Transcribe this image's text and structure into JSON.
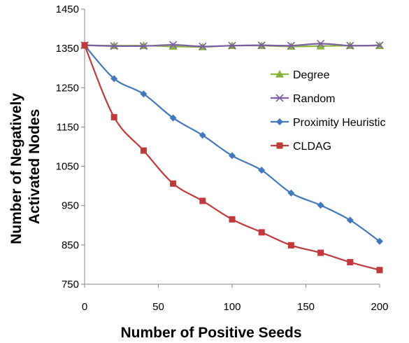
{
  "chart_data": {
    "type": "line",
    "title": "",
    "xlabel": "Number of Positive Seeds",
    "ylabel": [
      "Number of Negatively",
      "Activated Nodes"
    ],
    "xlim": [
      0,
      200
    ],
    "ylim": [
      750,
      1450
    ],
    "xticks": [
      0,
      50,
      100,
      150,
      200
    ],
    "yticks": [
      750,
      850,
      950,
      1050,
      1150,
      1250,
      1350,
      1450
    ],
    "grid": false,
    "legend": "right",
    "x": [
      0,
      20,
      40,
      60,
      80,
      100,
      120,
      140,
      160,
      180,
      200
    ],
    "series": [
      {
        "name": "Degree",
        "marker": "triangle",
        "color": "#8DB33F",
        "values": [
          1358,
          1357,
          1357,
          1355,
          1354,
          1357,
          1357,
          1355,
          1356,
          1357,
          1357
        ]
      },
      {
        "name": "Random",
        "marker": "x",
        "color": "#7B5FA5",
        "values": [
          1358,
          1356,
          1356,
          1359,
          1355,
          1357,
          1358,
          1357,
          1362,
          1357,
          1358
        ]
      },
      {
        "name": "Proximity Heuristic",
        "marker": "diamond",
        "color": "#4477BB",
        "values": [
          1358,
          1273,
          1234,
          1173,
          1129,
          1077,
          1040,
          982,
          951,
          913,
          859
        ]
      },
      {
        "name": "CLDAG",
        "marker": "square",
        "color": "#C0393B",
        "values": [
          1358,
          1175,
          1090,
          1006,
          962,
          915,
          882,
          849,
          830,
          806,
          786
        ]
      }
    ]
  }
}
